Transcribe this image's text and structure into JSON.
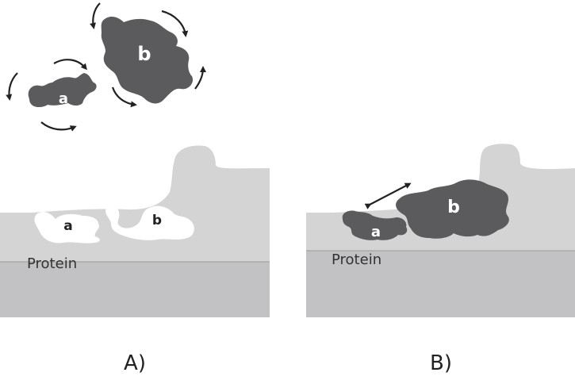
{
  "colors": {
    "fragment": "#5b5b5d",
    "surface_light": "#d4d4d5",
    "protein_body": "#c2c2c4",
    "cavity": "#ffffff",
    "arrow": "#222222"
  },
  "panel_a": {
    "caption": "A)",
    "protein_label": "Protein",
    "pocket_a_label": "a",
    "pocket_b_label": "b",
    "fragment_a_label": "a",
    "fragment_b_label": "b"
  },
  "panel_b": {
    "caption": "B)",
    "protein_label": "Protein",
    "fragment_a_label": "a",
    "fragment_b_label": "b"
  }
}
